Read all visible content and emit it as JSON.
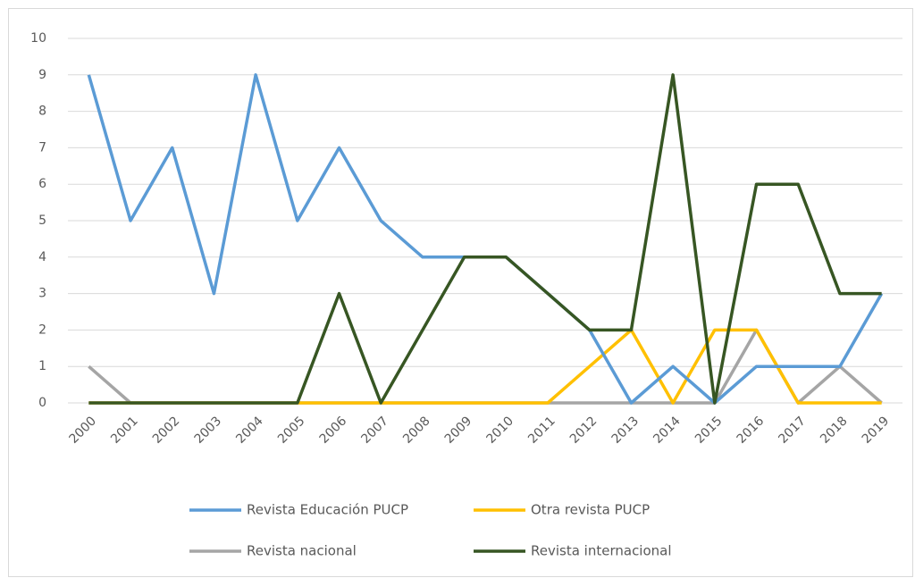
{
  "chart_data": {
    "type": "line",
    "categories": [
      "2000",
      "2001",
      "2002",
      "2003",
      "2004",
      "2005",
      "2006",
      "2007",
      "2008",
      "2009",
      "2010",
      "2011",
      "2012",
      "2013",
      "2014",
      "2015",
      "2016",
      "2017",
      "2018",
      "2019"
    ],
    "series": [
      {
        "name": "Revista Educación PUCP",
        "color": "#5b9bd5",
        "values": [
          9,
          5,
          7,
          3,
          9,
          5,
          7,
          5,
          4,
          4,
          4,
          3,
          2,
          0,
          1,
          0,
          1,
          1,
          1,
          3
        ]
      },
      {
        "name": "Otra revista PUCP",
        "color": "#ffc000",
        "values": [
          0,
          0,
          0,
          0,
          0,
          0,
          0,
          0,
          0,
          0,
          0,
          0,
          1,
          2,
          0,
          2,
          2,
          0,
          0,
          0
        ]
      },
      {
        "name": "Revista nacional",
        "color": "#a5a5a5",
        "values": [
          1,
          0,
          0,
          0,
          0,
          0,
          0,
          0,
          0,
          0,
          0,
          0,
          0,
          0,
          0,
          0,
          2,
          0,
          1,
          0
        ]
      },
      {
        "name": "Revista internacional",
        "color": "#375623",
        "values": [
          0,
          0,
          0,
          0,
          0,
          0,
          3,
          0,
          2,
          4,
          4,
          3,
          2,
          2,
          9,
          0,
          6,
          6,
          3,
          3
        ]
      }
    ],
    "ylim": [
      0,
      10
    ],
    "yticks": [
      0,
      1,
      2,
      3,
      4,
      5,
      6,
      7,
      8,
      9,
      10
    ],
    "grid": true,
    "legend": "bottom"
  }
}
